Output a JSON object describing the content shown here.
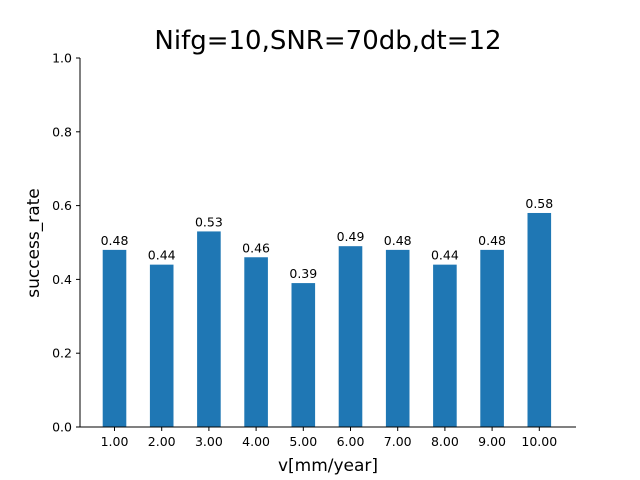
{
  "chart_data": {
    "type": "bar",
    "title": "Nifg=10,SNR=70db,dt=12",
    "xlabel": "v[mm/year]",
    "ylabel": "success_rate",
    "categories": [
      "1.00",
      "2.00",
      "3.00",
      "4.00",
      "5.00",
      "6.00",
      "7.00",
      "8.00",
      "9.00",
      "10.00"
    ],
    "values": [
      0.48,
      0.44,
      0.53,
      0.46,
      0.39,
      0.49,
      0.48,
      0.44,
      0.48,
      0.58
    ],
    "data_labels": [
      "0.48",
      "0.44",
      "0.53",
      "0.46",
      "0.39",
      "0.49",
      "0.48",
      "0.44",
      "0.48",
      "0.58"
    ],
    "ylim": [
      0,
      1.0
    ],
    "yticks": [
      0.0,
      0.2,
      0.4,
      0.6,
      0.8,
      1.0
    ],
    "ytick_labels": [
      "0.0",
      "0.2",
      "0.4",
      "0.6",
      "0.8",
      "1.0"
    ],
    "bar_color": "#1f77b4",
    "grid": false,
    "legend": "none"
  }
}
